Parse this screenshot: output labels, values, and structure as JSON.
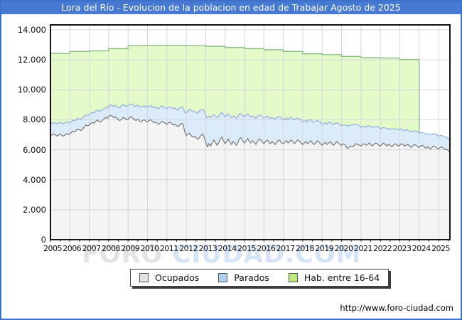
{
  "title_bar": {
    "text": "Lora del Río - Evolucion de la poblacion en edad de Trabajar Agosto de 2025"
  },
  "watermark": {
    "part1": "FORO",
    "part2": "CIUDAD.COM"
  },
  "footer": {
    "url": "http://www.foro-ciudad.com"
  },
  "legend": {
    "items": [
      {
        "label": "Ocupados",
        "swatch": "#e4e4e4"
      },
      {
        "label": "Parados",
        "swatch": "#b3d1ee"
      },
      {
        "label": "Hab. entre 16-64",
        "swatch": "#bce87e"
      }
    ]
  },
  "chart_data": {
    "type": "area",
    "title": "Lora del Río - Evolucion de la poblacion en edad de Trabajar Agosto de 2025",
    "grid": true,
    "legend_position": "bottom",
    "ylim": [
      0,
      14000
    ],
    "y_tick_labels": [
      "14.000",
      "12.000",
      "10.000",
      "8.000",
      "6.000",
      "4.000",
      "2.000",
      "0"
    ],
    "x_tick_labels": [
      "2005",
      "2006",
      "2007",
      "2008",
      "2009",
      "2010",
      "2011",
      "2012",
      "2013",
      "2014",
      "2015",
      "2016",
      "2017",
      "2018",
      "2019",
      "2020",
      "2021",
      "2022",
      "2023",
      "2024",
      "2025"
    ],
    "x_start_year": 2005,
    "x_end": "2025-08",
    "months_count": 248,
    "colors": {
      "ocupados_fill": "#f4f4f4",
      "ocupados_line": "#6e6e6e",
      "parados_fill": "#dcebf9",
      "parados_line": "#8fb0dd",
      "hab_fill": "#e4fac9",
      "hab_line": "#8abc88",
      "gridline": "#d5d6de",
      "plot_border": "#141414"
    },
    "series": [
      {
        "name": "Ocupados",
        "kind": "monthly",
        "start": "2005-01",
        "values": [
          6950,
          7000,
          7050,
          6980,
          6920,
          6980,
          7050,
          6960,
          6900,
          7000,
          7080,
          7020,
          7060,
          7150,
          7250,
          7180,
          7300,
          7380,
          7320,
          7280,
          7400,
          7550,
          7650,
          7600,
          7650,
          7750,
          7820,
          7760,
          7900,
          7980,
          7900,
          7850,
          7950,
          8050,
          8150,
          8100,
          8200,
          8300,
          8250,
          8150,
          8200,
          8100,
          8000,
          7950,
          8050,
          8150,
          8100,
          8000,
          8050,
          8150,
          8200,
          8100,
          8000,
          7950,
          8050,
          7900,
          7850,
          7950,
          8000,
          7900,
          7850,
          7950,
          8000,
          7900,
          7800,
          7850,
          7750,
          7700,
          7800,
          7900,
          7850,
          7750,
          7700,
          7800,
          7850,
          7750,
          7650,
          7700,
          7600,
          7550,
          7650,
          7750,
          7700,
          7200,
          6950,
          7050,
          7100,
          6950,
          6850,
          6900,
          6800,
          6700,
          6800,
          6950,
          7050,
          6850,
          6500,
          6200,
          6400,
          6250,
          6450,
          6650,
          6500,
          6300,
          6450,
          6700,
          6850,
          6600,
          6400,
          6550,
          6700,
          6500,
          6350,
          6550,
          6450,
          6300,
          6500,
          6750,
          6800,
          6550,
          6450,
          6600,
          6750,
          6550,
          6450,
          6600,
          6500,
          6350,
          6550,
          6700,
          6650,
          6500,
          6400,
          6550,
          6650,
          6500,
          6400,
          6550,
          6450,
          6350,
          6500,
          6650,
          6600,
          6450,
          6400,
          6500,
          6600,
          6450,
          6550,
          6650,
          6500,
          6400,
          6550,
          6650,
          6550,
          6450,
          6350,
          6450,
          6550,
          6400,
          6500,
          6600,
          6450,
          6350,
          6450,
          6600,
          6500,
          6400,
          6300,
          6400,
          6500,
          6350,
          6450,
          6550,
          6400,
          6300,
          6400,
          6550,
          6450,
          6350,
          6300,
          6400,
          6350,
          6150,
          6100,
          6200,
          6250,
          6200,
          6300,
          6400,
          6350,
          6300,
          6250,
          6350,
          6400,
          6300,
          6350,
          6450,
          6350,
          6250,
          6350,
          6450,
          6400,
          6300,
          6250,
          6350,
          6450,
          6350,
          6250,
          6350,
          6300,
          6200,
          6300,
          6400,
          6350,
          6250,
          6300,
          6400,
          6350,
          6250,
          6300,
          6350,
          6250,
          6150,
          6250,
          6350,
          6300,
          6200,
          6150,
          6250,
          6300,
          6200,
          6100,
          6200,
          6150,
          6050,
          6150,
          6250,
          6200,
          6100,
          6050,
          6150,
          6200,
          6100,
          6000,
          6050,
          5950,
          5850
        ]
      },
      {
        "name": "Parados",
        "kind": "monthly",
        "stacked_on": "Ocupados",
        "start": "2005-01",
        "values": [
          800,
          780,
          760,
          790,
          820,
          800,
          780,
          810,
          840,
          800,
          770,
          780,
          760,
          740,
          720,
          750,
          730,
          710,
          730,
          760,
          740,
          700,
          680,
          700,
          690,
          670,
          680,
          700,
          680,
          660,
          690,
          720,
          700,
          670,
          650,
          680,
          700,
          690,
          710,
          740,
          760,
          790,
          820,
          860,
          890,
          870,
          850,
          880,
          900,
          880,
          860,
          890,
          920,
          950,
          930,
          960,
          990,
          950,
          930,
          960,
          980,
          960,
          940,
          970,
          1000,
          1030,
          1010,
          1040,
          1070,
          1030,
          1010,
          1040,
          1060,
          1040,
          1020,
          1050,
          1080,
          1110,
          1090,
          1120,
          1150,
          1110,
          1090,
          1300,
          1500,
          1550,
          1600,
          1650,
          1700,
          1650,
          1700,
          1750,
          1800,
          1700,
          1650,
          1750,
          1800,
          1900,
          1850,
          1900,
          1800,
          1700,
          1750,
          1850,
          1800,
          1700,
          1650,
          1750,
          1800,
          1750,
          1700,
          1750,
          1800,
          1700,
          1750,
          1800,
          1750,
          1650,
          1600,
          1700,
          1750,
          1700,
          1650,
          1700,
          1750,
          1650,
          1700,
          1750,
          1700,
          1600,
          1650,
          1700,
          1700,
          1650,
          1600,
          1650,
          1700,
          1600,
          1650,
          1700,
          1650,
          1550,
          1600,
          1650,
          1600,
          1550,
          1500,
          1550,
          1600,
          1500,
          1550,
          1600,
          1550,
          1450,
          1500,
          1550,
          1500,
          1450,
          1400,
          1450,
          1500,
          1400,
          1450,
          1500,
          1450,
          1350,
          1400,
          1450,
          1400,
          1350,
          1300,
          1350,
          1400,
          1300,
          1350,
          1400,
          1350,
          1250,
          1300,
          1350,
          1300,
          1250,
          1300,
          1450,
          1500,
          1450,
          1400,
          1450,
          1400,
          1300,
          1350,
          1300,
          1250,
          1200,
          1150,
          1200,
          1250,
          1150,
          1200,
          1250,
          1200,
          1100,
          1150,
          1200,
          1150,
          1100,
          1050,
          1100,
          1150,
          1050,
          1100,
          1150,
          1100,
          1000,
          1050,
          1100,
          1050,
          1000,
          950,
          1000,
          1050,
          950,
          1000,
          1050,
          1000,
          900,
          950,
          1000,
          950,
          900,
          850,
          900,
          950,
          850,
          900,
          950,
          900,
          800,
          850,
          900,
          850,
          800,
          750,
          800,
          850,
          800,
          750,
          800
        ]
      },
      {
        "name": "Hab. entre 16-64",
        "kind": "annual-steps",
        "start_year": 2005,
        "end_year": 2023,
        "values": [
          12430,
          12560,
          12600,
          12750,
          12940,
          12950,
          12960,
          12940,
          12910,
          12830,
          12750,
          12670,
          12560,
          12400,
          12350,
          12230,
          12150,
          12120,
          12020
        ]
      }
    ]
  }
}
